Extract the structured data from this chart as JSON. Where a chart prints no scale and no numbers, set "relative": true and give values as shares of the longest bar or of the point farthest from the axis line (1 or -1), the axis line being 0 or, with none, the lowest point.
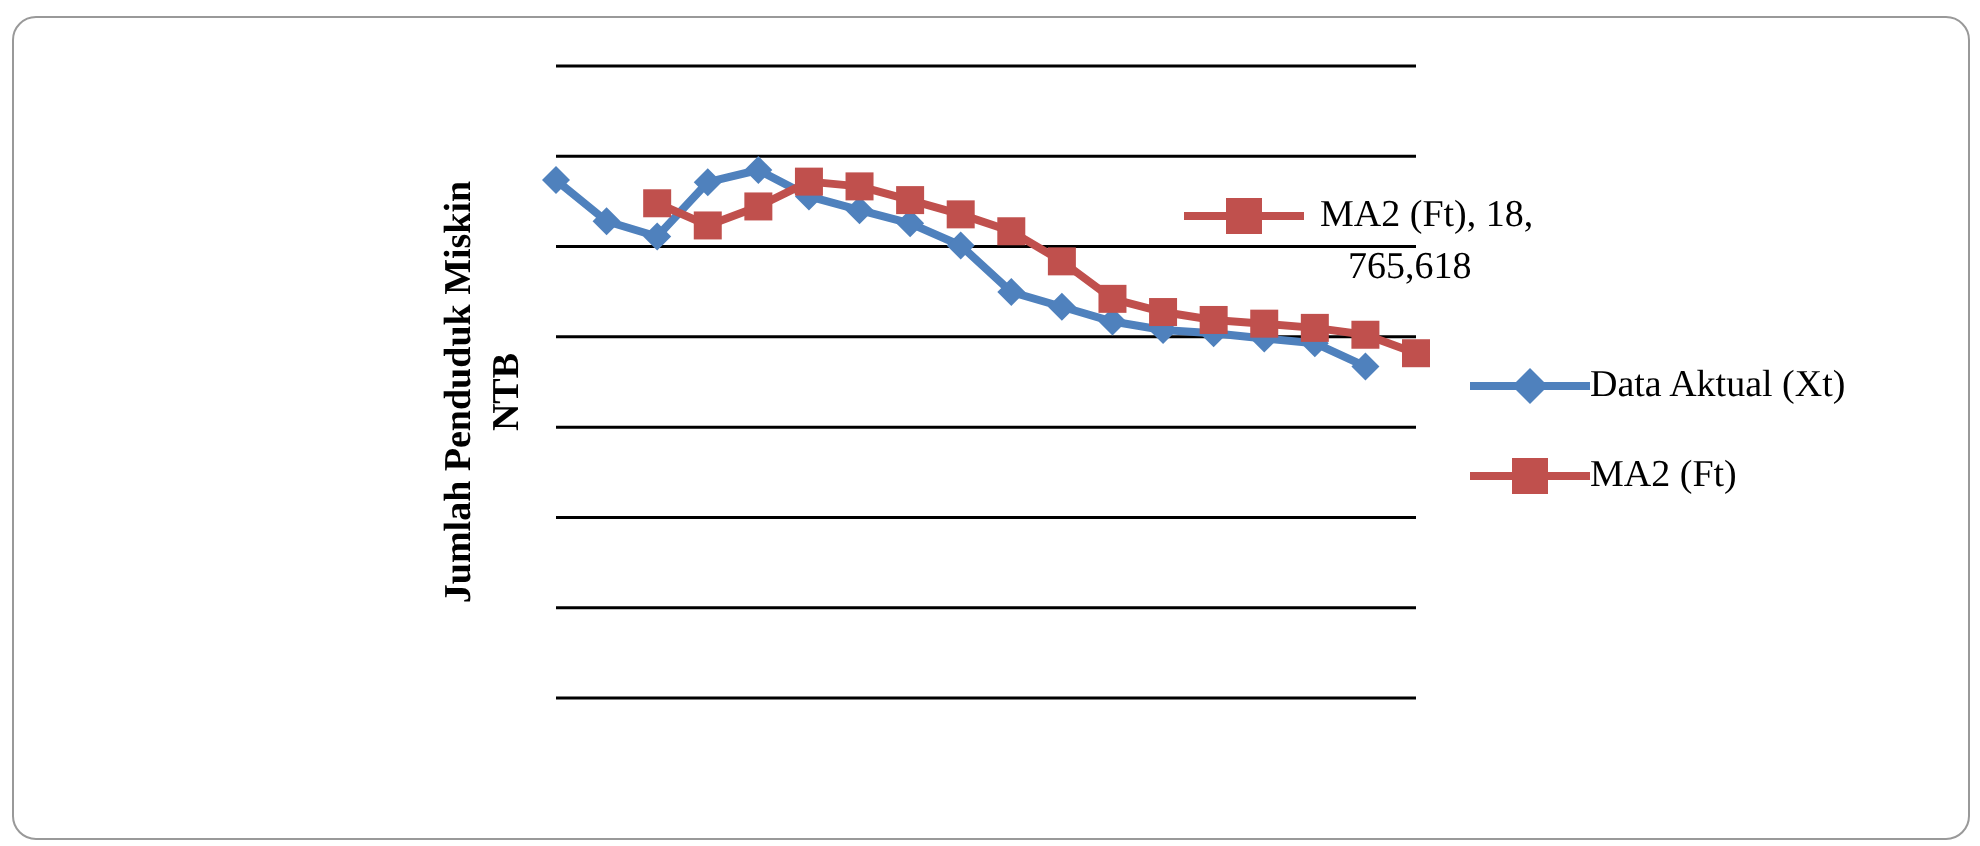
{
  "chart_data": {
    "type": "line",
    "ylabel": "Jumlah Penduduk Miskin NTB",
    "relative": true,
    "categories": [
      null,
      null,
      null,
      null,
      null,
      null,
      null,
      null,
      null,
      null,
      null,
      null,
      null,
      null,
      null,
      null,
      null,
      null
    ],
    "series": [
      {
        "name": "Data Aktual (Xt)",
        "color": "#4f81bd",
        "marker": "diamond",
        "values": [
          0.981,
          0.903,
          0.874,
          0.977,
          1,
          0.95,
          0.924,
          0.899,
          0.857,
          0.769,
          0.741,
          0.713,
          0.697,
          0.691,
          0.681,
          0.672,
          0.628,
          null
        ]
      },
      {
        "name": "MA2 (Ft)",
        "color": "#c0504d",
        "marker": "square",
        "values": [
          null,
          null,
          0.937,
          0.895,
          0.931,
          0.978,
          0.969,
          0.943,
          0.916,
          0.884,
          0.827,
          0.756,
          0.731,
          0.716,
          0.709,
          0.701,
          0.688,
          0.653
        ]
      }
    ],
    "annotations": [
      "MA2 (Ft), 18, 765,618"
    ],
    "grid": "y",
    "legend": "right",
    "line_style": "solid"
  }
}
